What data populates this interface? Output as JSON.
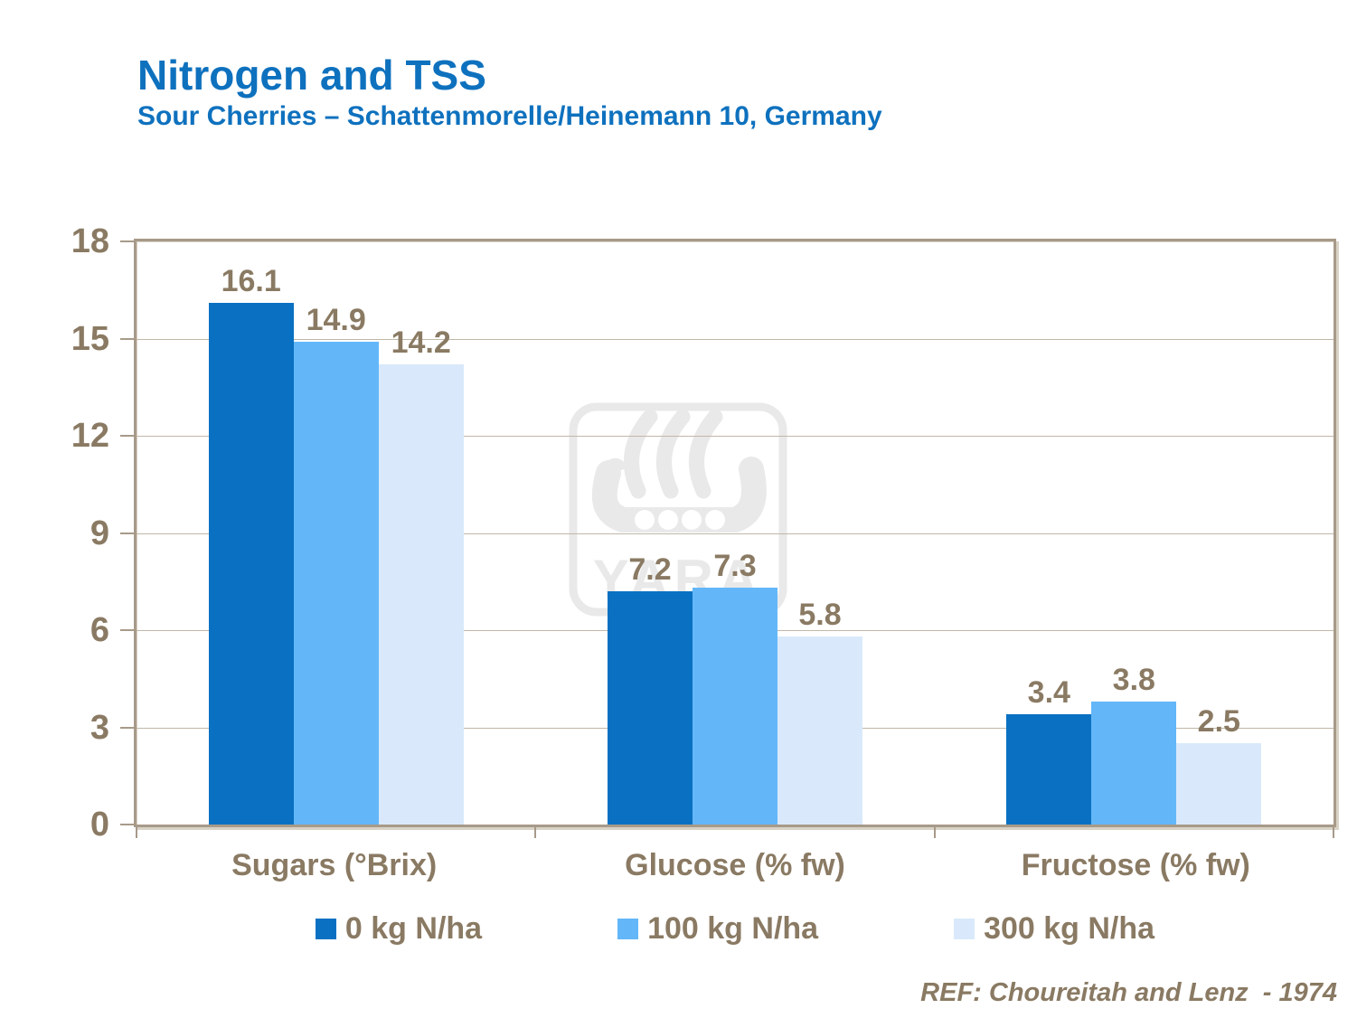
{
  "header": {
    "title": "Nitrogen and TSS",
    "subtitle": "Sour Cherries – Schattenmorelle/Heinemann 10, Germany"
  },
  "footer": {
    "reference": "REF: Choureitah and Lenz  - 1974"
  },
  "watermark": {
    "icon": "yara-viking-ship-logo",
    "text": "YARA",
    "color": "#e9e9e9"
  },
  "colors": {
    "title_blue": "#0e71be",
    "axis_taupe": "#a79a89",
    "gridline": "#c2b7a8",
    "label_taupe": "#8a7a63",
    "background": "#ffffff"
  },
  "chart_data": {
    "type": "bar",
    "title": "Nitrogen and TSS",
    "subtitle": "Sour Cherries – Schattenmorelle/Heinemann 10, Germany",
    "categories": [
      "Sugars (°Brix)",
      "Glucose (% fw)",
      "Fructose (% fw)"
    ],
    "series": [
      {
        "name": "0 kg N/ha",
        "color": "#0a71c2",
        "values": [
          16.1,
          7.2,
          3.4
        ]
      },
      {
        "name": "100 kg N/ha",
        "color": "#63b7f8",
        "values": [
          14.9,
          7.3,
          3.8
        ]
      },
      {
        "name": "300 kg N/ha",
        "color": "#d9e9fb",
        "values": [
          14.2,
          5.8,
          2.5
        ]
      }
    ],
    "xlabel": "",
    "ylabel": "",
    "ylim": [
      0,
      18
    ],
    "yticks": [
      0,
      3,
      6,
      9,
      12,
      15,
      18
    ],
    "grid": true,
    "legend_position": "bottom",
    "value_labels": true
  }
}
